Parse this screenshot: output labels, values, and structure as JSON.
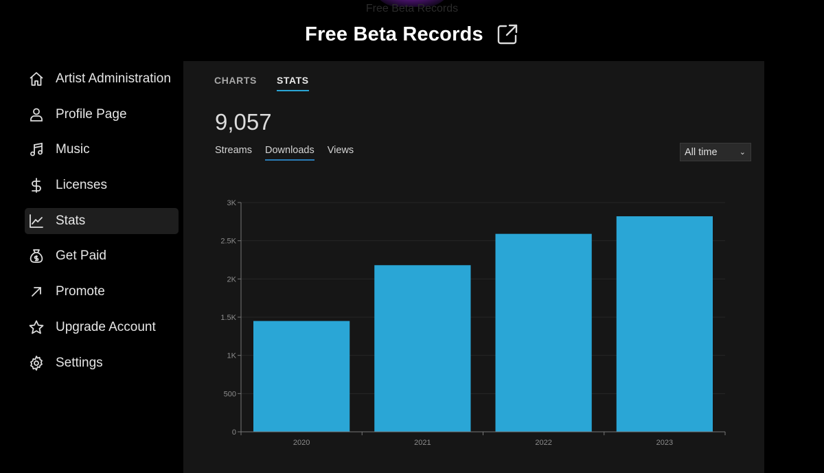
{
  "header": {
    "ghost_title": "Free Beta Records",
    "title": "Free Beta Records"
  },
  "sidebar": {
    "items": [
      {
        "label": "Artist Administration",
        "icon": "home-icon"
      },
      {
        "label": "Profile Page",
        "icon": "user-icon"
      },
      {
        "label": "Music",
        "icon": "music-note-icon"
      },
      {
        "label": "Licenses",
        "icon": "dollar-icon"
      },
      {
        "label": "Stats",
        "icon": "line-chart-icon",
        "active": true
      },
      {
        "label": "Get Paid",
        "icon": "money-bag-icon"
      },
      {
        "label": "Promote",
        "icon": "arrow-up-right-icon"
      },
      {
        "label": "Upgrade Account",
        "icon": "star-icon"
      },
      {
        "label": "Settings",
        "icon": "gear-icon"
      }
    ]
  },
  "main": {
    "tabs": [
      {
        "label": "CHARTS",
        "active": false
      },
      {
        "label": "STATS",
        "active": true
      }
    ],
    "total": "9,057",
    "subtabs": [
      {
        "label": "Streams",
        "active": false
      },
      {
        "label": "Downloads",
        "active": true
      },
      {
        "label": "Views",
        "active": false
      }
    ],
    "range": {
      "selected": "All time"
    }
  },
  "colors": {
    "bar": "#2aa6d6",
    "accent": "#2aa6d6",
    "panel": "#161616",
    "background": "#000000"
  },
  "chart_data": {
    "type": "bar",
    "categories": [
      "2020",
      "2021",
      "2022",
      "2023"
    ],
    "values": [
      1450,
      2180,
      2590,
      2820
    ],
    "ylim": [
      0,
      3000
    ],
    "yticks": [
      {
        "value": 0,
        "label": "0"
      },
      {
        "value": 500,
        "label": "500"
      },
      {
        "value": 1000,
        "label": "1K"
      },
      {
        "value": 1500,
        "label": "1.5K"
      },
      {
        "value": 2000,
        "label": "2K"
      },
      {
        "value": 2500,
        "label": "2.5K"
      },
      {
        "value": 3000,
        "label": "3K"
      }
    ],
    "grid": true
  }
}
